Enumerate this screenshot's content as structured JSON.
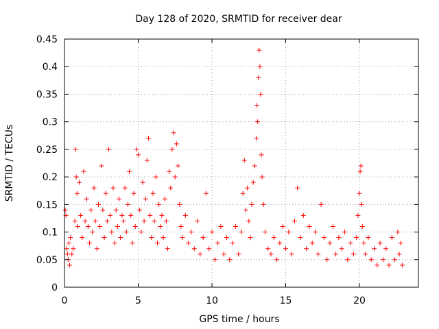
{
  "chart_data": {
    "type": "scatter",
    "title": "Day 128 of 2020, SRMTID for receiver dear",
    "xlabel": "GPS time / hours",
    "ylabel": "SRMTID / TECUs",
    "xlim": [
      0,
      24
    ],
    "ylim": [
      0,
      0.45
    ],
    "x_ticks": [
      0,
      5,
      10,
      15,
      20
    ],
    "x_tick_labels": [
      "0",
      "5",
      "10",
      "15",
      "20"
    ],
    "y_ticks": [
      0,
      0.05,
      0.1,
      0.15,
      0.2,
      0.25,
      0.3,
      0.35,
      0.4,
      0.45
    ],
    "y_tick_labels": [
      "0",
      "0.05",
      "0.1",
      "0.15",
      "0.2",
      "0.25",
      "0.3",
      "0.35",
      "0.4",
      "0.45"
    ],
    "grid": true,
    "marker": "+",
    "color": "#ff0000",
    "series": [
      {
        "name": "SRMTID",
        "points": [
          [
            0.05,
            0.14
          ],
          [
            0.1,
            0.13
          ],
          [
            0.15,
            0.07
          ],
          [
            0.2,
            0.06
          ],
          [
            0.25,
            0.05
          ],
          [
            0.3,
            0.08
          ],
          [
            0.35,
            0.04
          ],
          [
            0.4,
            0.09
          ],
          [
            0.5,
            0.06
          ],
          [
            0.6,
            0.07
          ],
          [
            0.7,
            0.12
          ],
          [
            0.75,
            0.25
          ],
          [
            0.8,
            0.2
          ],
          [
            0.85,
            0.17
          ],
          [
            0.9,
            0.11
          ],
          [
            1.0,
            0.19
          ],
          [
            1.1,
            0.13
          ],
          [
            1.2,
            0.09
          ],
          [
            1.3,
            0.21
          ],
          [
            1.4,
            0.12
          ],
          [
            1.5,
            0.16
          ],
          [
            1.6,
            0.11
          ],
          [
            1.7,
            0.08
          ],
          [
            1.8,
            0.14
          ],
          [
            1.9,
            0.1
          ],
          [
            2.0,
            0.18
          ],
          [
            2.1,
            0.12
          ],
          [
            2.2,
            0.07
          ],
          [
            2.3,
            0.15
          ],
          [
            2.4,
            0.11
          ],
          [
            2.5,
            0.22
          ],
          [
            2.6,
            0.14
          ],
          [
            2.7,
            0.09
          ],
          [
            2.8,
            0.17
          ],
          [
            2.9,
            0.12
          ],
          [
            3.0,
            0.25
          ],
          [
            3.1,
            0.13
          ],
          [
            3.2,
            0.1
          ],
          [
            3.3,
            0.18
          ],
          [
            3.4,
            0.08
          ],
          [
            3.5,
            0.14
          ],
          [
            3.6,
            0.11
          ],
          [
            3.7,
            0.16
          ],
          [
            3.8,
            0.09
          ],
          [
            3.9,
            0.13
          ],
          [
            4.0,
            0.12
          ],
          [
            4.1,
            0.18
          ],
          [
            4.2,
            0.1
          ],
          [
            4.3,
            0.15
          ],
          [
            4.4,
            0.21
          ],
          [
            4.5,
            0.13
          ],
          [
            4.6,
            0.08
          ],
          [
            4.7,
            0.17
          ],
          [
            4.8,
            0.11
          ],
          [
            4.9,
            0.25
          ],
          [
            5.0,
            0.24
          ],
          [
            5.1,
            0.14
          ],
          [
            5.2,
            0.1
          ],
          [
            5.3,
            0.19
          ],
          [
            5.4,
            0.12
          ],
          [
            5.5,
            0.16
          ],
          [
            5.6,
            0.23
          ],
          [
            5.7,
            0.27
          ],
          [
            5.8,
            0.13
          ],
          [
            5.9,
            0.09
          ],
          [
            6.0,
            0.17
          ],
          [
            6.1,
            0.12
          ],
          [
            6.2,
            0.2
          ],
          [
            6.3,
            0.08
          ],
          [
            6.4,
            0.15
          ],
          [
            6.5,
            0.11
          ],
          [
            6.6,
            0.13
          ],
          [
            6.7,
            0.09
          ],
          [
            6.8,
            0.16
          ],
          [
            6.9,
            0.12
          ],
          [
            7.0,
            0.07
          ],
          [
            7.1,
            0.21
          ],
          [
            7.2,
            0.18
          ],
          [
            7.3,
            0.25
          ],
          [
            7.4,
            0.28
          ],
          [
            7.5,
            0.2
          ],
          [
            7.6,
            0.26
          ],
          [
            7.7,
            0.22
          ],
          [
            7.8,
            0.15
          ],
          [
            7.9,
            0.11
          ],
          [
            8.0,
            0.09
          ],
          [
            8.2,
            0.13
          ],
          [
            8.4,
            0.08
          ],
          [
            8.6,
            0.1
          ],
          [
            8.8,
            0.07
          ],
          [
            9.0,
            0.12
          ],
          [
            9.2,
            0.06
          ],
          [
            9.4,
            0.09
          ],
          [
            9.6,
            0.17
          ],
          [
            9.8,
            0.07
          ],
          [
            10.0,
            0.1
          ],
          [
            10.2,
            0.05
          ],
          [
            10.4,
            0.08
          ],
          [
            10.6,
            0.11
          ],
          [
            10.8,
            0.06
          ],
          [
            11.0,
            0.09
          ],
          [
            11.2,
            0.05
          ],
          [
            11.4,
            0.08
          ],
          [
            11.6,
            0.11
          ],
          [
            11.8,
            0.06
          ],
          [
            12.0,
            0.1
          ],
          [
            12.1,
            0.17
          ],
          [
            12.2,
            0.23
          ],
          [
            12.3,
            0.14
          ],
          [
            12.4,
            0.18
          ],
          [
            12.5,
            0.12
          ],
          [
            12.6,
            0.09
          ],
          [
            12.7,
            0.15
          ],
          [
            12.8,
            0.19
          ],
          [
            12.9,
            0.22
          ],
          [
            13.0,
            0.27
          ],
          [
            13.05,
            0.33
          ],
          [
            13.1,
            0.3
          ],
          [
            13.15,
            0.38
          ],
          [
            13.2,
            0.43
          ],
          [
            13.25,
            0.4
          ],
          [
            13.3,
            0.35
          ],
          [
            13.35,
            0.24
          ],
          [
            13.4,
            0.2
          ],
          [
            13.5,
            0.15
          ],
          [
            13.6,
            0.1
          ],
          [
            13.8,
            0.07
          ],
          [
            14.0,
            0.06
          ],
          [
            14.2,
            0.09
          ],
          [
            14.4,
            0.05
          ],
          [
            14.6,
            0.08
          ],
          [
            14.8,
            0.11
          ],
          [
            15.0,
            0.07
          ],
          [
            15.2,
            0.1
          ],
          [
            15.4,
            0.06
          ],
          [
            15.6,
            0.12
          ],
          [
            15.8,
            0.18
          ],
          [
            16.0,
            0.09
          ],
          [
            16.2,
            0.13
          ],
          [
            16.4,
            0.07
          ],
          [
            16.6,
            0.11
          ],
          [
            16.8,
            0.08
          ],
          [
            17.0,
            0.1
          ],
          [
            17.2,
            0.06
          ],
          [
            17.4,
            0.15
          ],
          [
            17.6,
            0.09
          ],
          [
            17.8,
            0.05
          ],
          [
            18.0,
            0.08
          ],
          [
            18.2,
            0.11
          ],
          [
            18.4,
            0.06
          ],
          [
            18.6,
            0.09
          ],
          [
            18.8,
            0.07
          ],
          [
            19.0,
            0.1
          ],
          [
            19.2,
            0.05
          ],
          [
            19.4,
            0.08
          ],
          [
            19.6,
            0.06
          ],
          [
            19.8,
            0.09
          ],
          [
            19.9,
            0.13
          ],
          [
            20.0,
            0.17
          ],
          [
            20.05,
            0.21
          ],
          [
            20.1,
            0.22
          ],
          [
            20.15,
            0.15
          ],
          [
            20.2,
            0.11
          ],
          [
            20.3,
            0.08
          ],
          [
            20.4,
            0.06
          ],
          [
            20.6,
            0.09
          ],
          [
            20.8,
            0.05
          ],
          [
            21.0,
            0.07
          ],
          [
            21.2,
            0.04
          ],
          [
            21.4,
            0.08
          ],
          [
            21.6,
            0.05
          ],
          [
            21.8,
            0.07
          ],
          [
            22.0,
            0.04
          ],
          [
            22.2,
            0.09
          ],
          [
            22.4,
            0.05
          ],
          [
            22.6,
            0.1
          ],
          [
            22.7,
            0.06
          ],
          [
            22.8,
            0.08
          ],
          [
            22.9,
            0.04
          ]
        ]
      }
    ]
  }
}
